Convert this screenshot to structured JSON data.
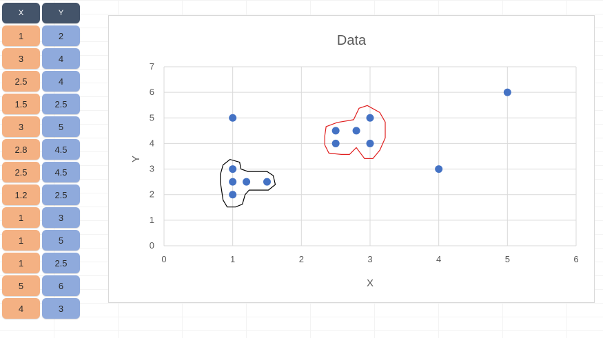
{
  "table": {
    "headers": [
      "X",
      "Y"
    ],
    "rows": [
      [
        "1",
        "2"
      ],
      [
        "3",
        "4"
      ],
      [
        "2.5",
        "4"
      ],
      [
        "1.5",
        "2.5"
      ],
      [
        "3",
        "5"
      ],
      [
        "2.8",
        "4.5"
      ],
      [
        "2.5",
        "4.5"
      ],
      [
        "1.2",
        "2.5"
      ],
      [
        "1",
        "3"
      ],
      [
        "1",
        "5"
      ],
      [
        "1",
        "2.5"
      ],
      [
        "5",
        "6"
      ],
      [
        "4",
        "3"
      ]
    ]
  },
  "colors": {
    "header": "#44546a",
    "x_cell": "#f4b183",
    "y_cell": "#8faadc",
    "point": "#4472c4",
    "cluster_black": "#000000",
    "cluster_red": "#e02020"
  },
  "chart_data": {
    "type": "scatter",
    "title": "Data",
    "xlabel": "X",
    "ylabel": "Y",
    "xlim": [
      0,
      6
    ],
    "ylim": [
      0,
      7
    ],
    "xticks": [
      0,
      1,
      2,
      3,
      4,
      5,
      6
    ],
    "yticks": [
      0,
      1,
      2,
      3,
      4,
      5,
      6,
      7
    ],
    "grid": true,
    "points": [
      {
        "x": 1,
        "y": 2
      },
      {
        "x": 3,
        "y": 4
      },
      {
        "x": 2.5,
        "y": 4
      },
      {
        "x": 1.5,
        "y": 2.5
      },
      {
        "x": 3,
        "y": 5
      },
      {
        "x": 2.8,
        "y": 4.5
      },
      {
        "x": 2.5,
        "y": 4.5
      },
      {
        "x": 1.2,
        "y": 2.5
      },
      {
        "x": 1,
        "y": 3
      },
      {
        "x": 1,
        "y": 5
      },
      {
        "x": 1,
        "y": 2.5
      },
      {
        "x": 5,
        "y": 6
      },
      {
        "x": 4,
        "y": 3
      }
    ],
    "annotations": [
      {
        "shape": "hand-drawn-outline",
        "color": "#000000",
        "encloses": [
          {
            "x": 1,
            "y": 2
          },
          {
            "x": 1,
            "y": 2.5
          },
          {
            "x": 1,
            "y": 3
          },
          {
            "x": 1.2,
            "y": 2.5
          },
          {
            "x": 1.5,
            "y": 2.5
          }
        ]
      },
      {
        "shape": "hand-drawn-outline",
        "color": "#e02020",
        "encloses": [
          {
            "x": 2.5,
            "y": 4
          },
          {
            "x": 2.5,
            "y": 4.5
          },
          {
            "x": 2.8,
            "y": 4.5
          },
          {
            "x": 3,
            "y": 4
          },
          {
            "x": 3,
            "y": 5
          }
        ]
      }
    ]
  }
}
